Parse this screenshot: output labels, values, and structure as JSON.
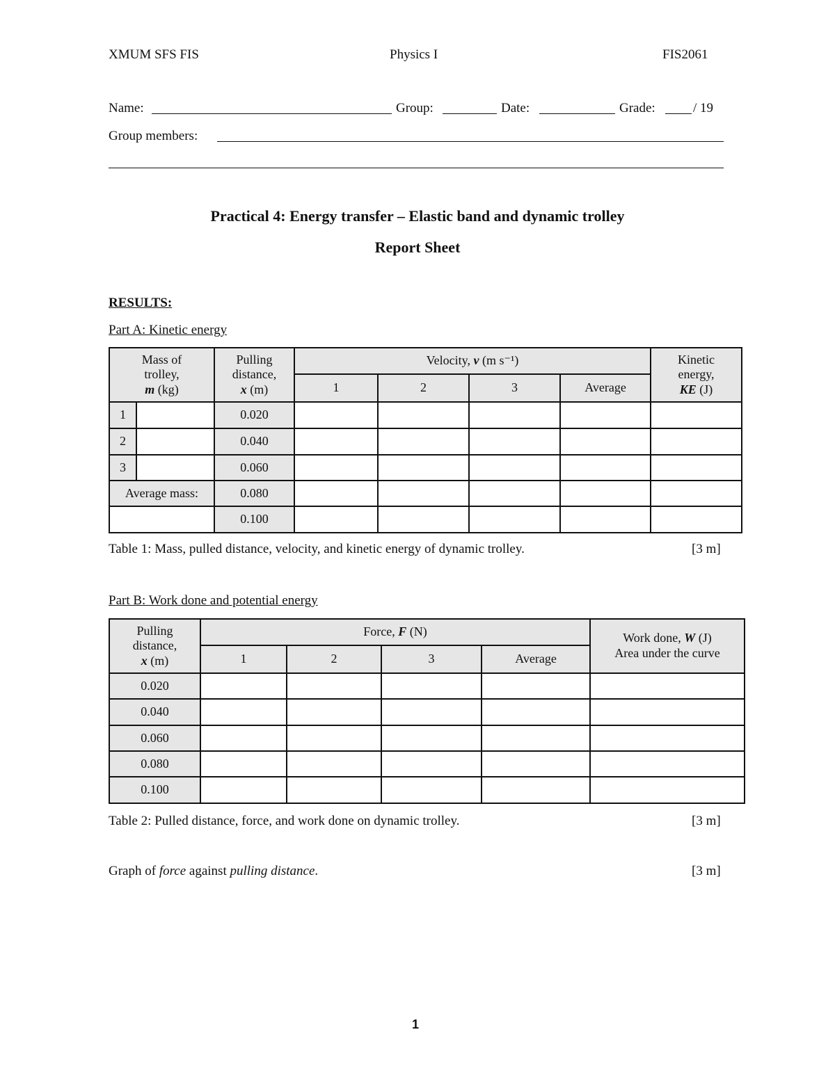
{
  "header": {
    "left": "XMUM SFS FIS",
    "center": "Physics I",
    "right": "FIS2061"
  },
  "form": {
    "name_label": "Name:",
    "group_label": "Group:",
    "date_label": "Date:",
    "grade_label": "Grade:",
    "grade_total": "/ 19",
    "members_label": "Group members:"
  },
  "title": "Practical 4: Energy transfer – Elastic band and dynamic trolley",
  "subtitle": "Report Sheet",
  "results_heading": "RESULTS:",
  "partA": {
    "heading": "Part A: Kinetic energy",
    "headers": {
      "mass_l1": "Mass of",
      "mass_l2": "trolley,",
      "mass_sym": "m",
      "mass_unit": "(kg)",
      "pull_l1": "Pulling",
      "pull_l2": "distance,",
      "pull_sym": "x",
      "pull_unit": "(m)",
      "vel": "Velocity,",
      "vel_sym": "v",
      "vel_unit": "(m s⁻¹)",
      "trial1": "1",
      "trial2": "2",
      "trial3": "3",
      "avg": "Average",
      "ke_l1": "Kinetic",
      "ke_l2": "energy,",
      "ke_sym": "KE",
      "ke_unit": "(J)"
    },
    "row_numbers": [
      "1",
      "2",
      "3"
    ],
    "avg_mass_label": "Average mass:",
    "distances": [
      "0.020",
      "0.040",
      "0.060",
      "0.080",
      "0.100"
    ],
    "caption": "Table 1: Mass, pulled distance, velocity, and kinetic energy of dynamic trolley.",
    "marks": "[3 m]"
  },
  "partB": {
    "heading": "Part B: Work done and potential energy",
    "headers": {
      "pull_l1": "Pulling",
      "pull_l2": "distance,",
      "pull_sym": "x",
      "pull_unit": "(m)",
      "force": "Force,",
      "force_sym": "F",
      "force_unit": "(N)",
      "trial1": "1",
      "trial2": "2",
      "trial3": "3",
      "avg": "Average",
      "work": "Work done,",
      "work_sym": "W",
      "work_unit": "(J)",
      "work_l2": "Area under the curve"
    },
    "distances": [
      "0.020",
      "0.040",
      "0.060",
      "0.080",
      "0.100"
    ],
    "caption": "Table 2: Pulled distance, force, and work done on dynamic trolley.",
    "marks": "[3 m]"
  },
  "graph": {
    "pre": "Graph of",
    "force": "force",
    "mid": "against",
    "dist": "pulling distance",
    "end": ".",
    "marks": "[3 m]"
  },
  "page_number": "1"
}
